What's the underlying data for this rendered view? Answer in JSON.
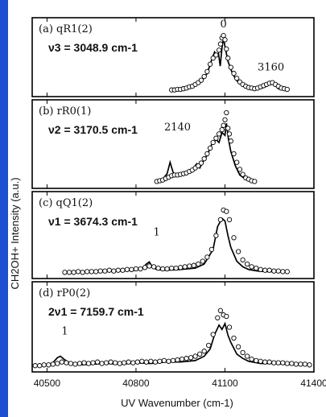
{
  "chart_data": {
    "type": "line",
    "xlabel": "UV Wavenumber (cm-1)",
    "ylabel": "CH2OH+ Intensity (a.u.)",
    "xlim": [
      40450,
      41400
    ],
    "xticks": [
      40500,
      40800,
      41100,
      41400
    ],
    "panels": [
      {
        "label": "(a) qR1(2)",
        "vib": "ν3 = 3048.9 cm-1",
        "series": [
          {
            "style": "line",
            "x": [
              40920,
              40950,
              40980,
              41000,
              41020,
              41040,
              41055,
              41065,
              41072,
              41078,
              41084,
              41090,
              41095,
              41100,
              41110,
              41125,
              41140,
              41160,
              41180,
              41200,
              41225,
              41240,
              41250,
              41260,
              41270,
              41280,
              41295,
              41310
            ],
            "y": [
              0.03,
              0.04,
              0.07,
              0.1,
              0.16,
              0.3,
              0.52,
              0.65,
              0.58,
              0.63,
              0.42,
              0.72,
              0.88,
              0.74,
              0.5,
              0.3,
              0.18,
              0.1,
              0.06,
              0.04,
              0.06,
              0.09,
              0.14,
              0.17,
              0.1,
              0.05,
              0.04,
              0.03
            ]
          },
          {
            "style": "markers",
            "x": [
              40920,
              40930,
              40940,
              40950,
              40960,
              40970,
              40980,
              40990,
              41000,
              41010,
              41020,
              41030,
              41040,
              41050,
              41060,
              41070,
              41080,
              41085,
              41090,
              41095,
              41100,
              41105,
              41110,
              41120,
              41130,
              41140,
              41150,
              41160,
              41170,
              41180,
              41190,
              41200,
              41210,
              41220,
              41230,
              41240,
              41250,
              41260,
              41270,
              41280,
              41290,
              41300,
              41310
            ],
            "y": [
              0.03,
              0.03,
              0.04,
              0.04,
              0.05,
              0.06,
              0.08,
              0.09,
              0.12,
              0.15,
              0.19,
              0.25,
              0.33,
              0.45,
              0.55,
              0.6,
              0.68,
              0.78,
              0.88,
              0.92,
              0.85,
              0.7,
              0.55,
              0.4,
              0.3,
              0.22,
              0.16,
              0.12,
              0.09,
              0.07,
              0.06,
              0.05,
              0.06,
              0.08,
              0.1,
              0.12,
              0.14,
              0.15,
              0.12,
              0.09,
              0.06,
              0.05,
              0.04
            ]
          }
        ],
        "annotations": [
          {
            "text": "0",
            "x": 41095,
            "y": 1.05
          },
          {
            "text": "3160",
            "x": 41255,
            "y": 0.35
          }
        ]
      },
      {
        "label": "(b) rR0(1)",
        "vib": "ν2 = 3170.5 cm-1",
        "series": [
          {
            "style": "line",
            "x": [
              40870,
              40890,
              40905,
              40915,
              40925,
              40935,
              40950,
              40970,
              40990,
              41005,
              41015,
              41025,
              41040,
              41055,
              41070,
              41080,
              41090,
              41100,
              41105,
              41112,
              41120,
              41135,
              41150,
              41170,
              41200
            ],
            "y": [
              0.03,
              0.06,
              0.14,
              0.3,
              0.16,
              0.1,
              0.13,
              0.14,
              0.2,
              0.28,
              0.22,
              0.3,
              0.4,
              0.55,
              0.62,
              0.58,
              0.72,
              0.68,
              0.85,
              0.62,
              0.45,
              0.25,
              0.12,
              0.06,
              0.03
            ]
          },
          {
            "style": "markers",
            "x": [
              40870,
              40880,
              40890,
              40900,
              40910,
              40920,
              40930,
              40940,
              40950,
              40960,
              40970,
              40980,
              40990,
              41000,
              41010,
              41020,
              41030,
              41040,
              41050,
              41060,
              41070,
              41080,
              41090,
              41095,
              41100,
              41105,
              41110,
              41115,
              41120,
              41130,
              41140,
              41150,
              41160,
              41170,
              41180,
              41190,
              41200
            ],
            "y": [
              0.03,
              0.04,
              0.05,
              0.07,
              0.09,
              0.11,
              0.12,
              0.12,
              0.13,
              0.14,
              0.15,
              0.17,
              0.19,
              0.22,
              0.25,
              0.29,
              0.35,
              0.42,
              0.5,
              0.58,
              0.64,
              0.7,
              0.76,
              0.82,
              0.9,
              1.0,
              0.78,
              0.7,
              0.6,
              0.42,
              0.3,
              0.2,
              0.13,
              0.08,
              0.06,
              0.04,
              0.03
            ]
          }
        ],
        "annotations": [
          {
            "text": "2140",
            "x": 40940,
            "y": 0.75
          }
        ]
      },
      {
        "label": "(c) qQ1(2)",
        "vib": "ν1 = 3674.3 cm-1",
        "series": [
          {
            "style": "line",
            "x": [
              40560,
              40600,
              40650,
              40700,
              40750,
              40800,
              40820,
              40835,
              40845,
              40855,
              40870,
              40900,
              40950,
              41000,
              41030,
              41060,
              41075,
              41090,
              41100,
              41110,
              41120,
              41140,
              41160,
              41180,
              41210,
              41240,
              41270,
              41310
            ],
            "y": [
              0.02,
              0.02,
              0.03,
              0.03,
              0.04,
              0.05,
              0.07,
              0.14,
              0.17,
              0.1,
              0.06,
              0.05,
              0.06,
              0.08,
              0.14,
              0.35,
              0.68,
              0.8,
              0.76,
              0.55,
              0.38,
              0.18,
              0.1,
              0.06,
              0.04,
              0.03,
              0.03,
              0.02
            ]
          },
          {
            "style": "markers",
            "x": [
              40560,
              40575,
              40590,
              40605,
              40620,
              40635,
              40650,
              40665,
              40680,
              40695,
              40710,
              40725,
              40740,
              40755,
              40770,
              40785,
              40800,
              40815,
              40830,
              40845,
              40860,
              40875,
              40890,
              40905,
              40920,
              40935,
              40950,
              40965,
              40980,
              40995,
              41010,
              41025,
              41040,
              41055,
              41070,
              41085,
              41095,
              41105,
              41115,
              41130,
              41145,
              41160,
              41175,
              41190,
              41205,
              41220,
              41235,
              41250,
              41265,
              41280,
              41295,
              41310
            ],
            "y": [
              0.02,
              0.02,
              0.02,
              0.03,
              0.02,
              0.03,
              0.03,
              0.03,
              0.04,
              0.04,
              0.05,
              0.04,
              0.05,
              0.05,
              0.06,
              0.06,
              0.07,
              0.07,
              0.09,
              0.11,
              0.1,
              0.08,
              0.07,
              0.07,
              0.08,
              0.08,
              0.09,
              0.1,
              0.11,
              0.12,
              0.14,
              0.18,
              0.24,
              0.35,
              0.55,
              0.78,
              0.92,
              0.9,
              0.78,
              0.52,
              0.32,
              0.2,
              0.14,
              0.1,
              0.08,
              0.06,
              0.05,
              0.05,
              0.04,
              0.04,
              0.03,
              0.03
            ]
          }
        ],
        "annotations": [
          {
            "text": "1",
            "x": 40870,
            "y": 0.55
          }
        ]
      },
      {
        "label": "(d) rP0(2)",
        "vib": "2ν1 = 7159.7 cm-1",
        "series": [
          {
            "style": "line",
            "x": [
              40460,
              40480,
              40500,
              40520,
              40535,
              40545,
              40560,
              40580,
              40610,
              40650,
              40700,
              40750,
              40800,
              40850,
              40900,
              40950,
              41000,
              41030,
              41050,
              41065,
              41080,
              41090,
              41100,
              41110,
              41120,
              41140,
              41160,
              41180,
              41220,
              41260,
              41300,
              41350,
              41390
            ],
            "y": [
              0.02,
              0.02,
              0.03,
              0.06,
              0.13,
              0.15,
              0.1,
              0.05,
              0.03,
              0.04,
              0.05,
              0.04,
              0.06,
              0.05,
              0.07,
              0.07,
              0.09,
              0.15,
              0.25,
              0.45,
              0.58,
              0.52,
              0.6,
              0.44,
              0.34,
              0.18,
              0.12,
              0.08,
              0.05,
              0.05,
              0.04,
              0.03,
              0.03
            ]
          },
          {
            "style": "markers",
            "x": [
              40460,
              40475,
              40490,
              40505,
              40520,
              40535,
              40550,
              40565,
              40580,
              40595,
              40610,
              40625,
              40640,
              40655,
              40670,
              40685,
              40700,
              40715,
              40730,
              40745,
              40760,
              40775,
              40790,
              40805,
              40820,
              40835,
              40850,
              40865,
              40880,
              40895,
              40910,
              40925,
              40940,
              40955,
              40970,
              40985,
              41000,
              41015,
              41030,
              41045,
              41060,
              41075,
              41085,
              41095,
              41105,
              41115,
              41130,
              41145,
              41160,
              41175,
              41190,
              41205,
              41220,
              41235,
              41250,
              41265,
              41280,
              41295,
              41310,
              41325,
              41340,
              41355,
              41370,
              41385
            ],
            "y": [
              0.02,
              0.02,
              0.03,
              0.03,
              0.04,
              0.05,
              0.07,
              0.06,
              0.05,
              0.04,
              0.05,
              0.06,
              0.05,
              0.06,
              0.07,
              0.05,
              0.06,
              0.07,
              0.06,
              0.05,
              0.06,
              0.07,
              0.06,
              0.07,
              0.08,
              0.07,
              0.08,
              0.07,
              0.08,
              0.09,
              0.08,
              0.09,
              0.1,
              0.11,
              0.12,
              0.13,
              0.15,
              0.18,
              0.22,
              0.3,
              0.45,
              0.68,
              0.78,
              0.72,
              0.7,
              0.55,
              0.4,
              0.28,
              0.2,
              0.15,
              0.11,
              0.09,
              0.08,
              0.07,
              0.07,
              0.06,
              0.06,
              0.06,
              0.05,
              0.05,
              0.04,
              0.04,
              0.04,
              0.03
            ]
          }
        ],
        "annotations": [
          {
            "text": "1",
            "x": 40560,
            "y": 0.45
          }
        ]
      }
    ]
  }
}
